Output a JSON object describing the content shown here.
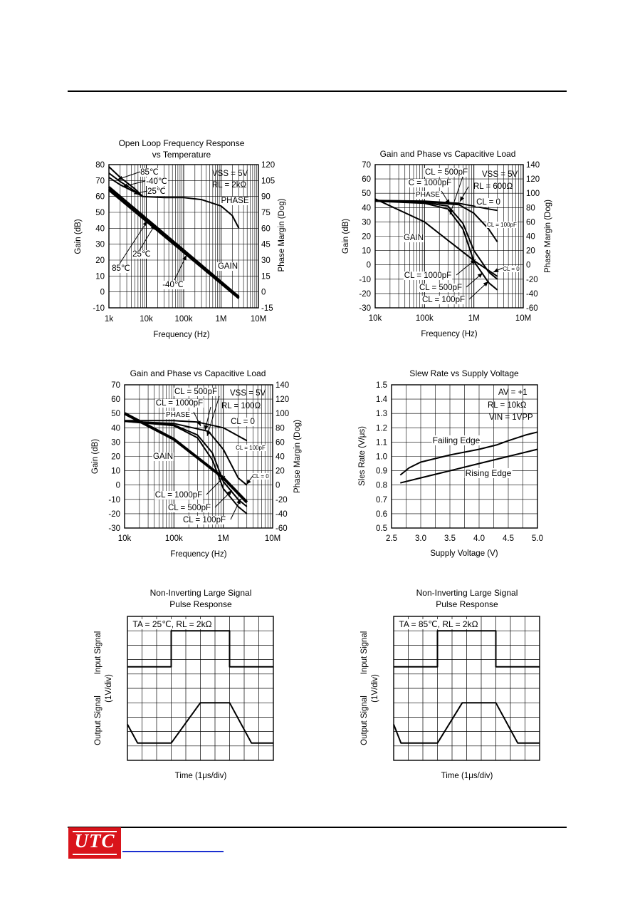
{
  "brand": {
    "logo_text": "UTC",
    "brand_color": "#d9141b",
    "link_color": "#1a2fd0"
  },
  "charts": [
    {
      "title": [
        "Open Loop Frequency Response",
        "vs Temperature"
      ],
      "type": "line",
      "xscale": "log",
      "xlabel": "Frequency (Hz)",
      "ylabel": "Gain (dB)",
      "y2label": "Phase Margin (Dog)",
      "xticks": [
        "1k",
        "10k",
        "100k",
        "1M",
        "10M"
      ],
      "yticks": [
        "80",
        "70",
        "60",
        "50",
        "40",
        "30",
        "20",
        "10",
        "0",
        "-10"
      ],
      "y2ticks": [
        "120",
        "105",
        "90",
        "75",
        "60",
        "45",
        "30",
        "15",
        "0",
        "-15"
      ],
      "conditions": [
        "VSS = 5V",
        "RL = 2kΩ"
      ],
      "annotations": [
        "85℃",
        "-40℃",
        "25℃",
        "PHASE",
        "25℃",
        "85℃",
        "-40℃",
        "GAIN"
      ]
    },
    {
      "title": [
        "Gain and Phase vs Capacitive Load"
      ],
      "type": "line",
      "xscale": "log",
      "xlabel": "Frequency (Hz)",
      "ylabel": "Gain (dB)",
      "y2label": "Phase Margin (Dog)",
      "xticks": [
        "10k",
        "100k",
        "1M",
        "10M"
      ],
      "yticks": [
        "70",
        "60",
        "50",
        "40",
        "30",
        "20",
        "10",
        "0",
        "-10",
        "-20",
        "-30"
      ],
      "y2ticks": [
        "140",
        "120",
        "100",
        "80",
        "60",
        "40",
        "20",
        "0",
        "-20",
        "-40",
        "-60"
      ],
      "conditions": [
        "VSS = 5V",
        "RL = 600Ω"
      ],
      "annotations": [
        "CL = 500pF",
        "C  = 1000pF",
        "PHASE",
        "CL = 0",
        "CL = 100pF",
        "GAIN",
        "CL = 1000pF",
        "CL = 500pF",
        "CL = 100pF",
        "CL = 0"
      ]
    },
    {
      "title": [
        "Gain and Phase vs Capacitive Load"
      ],
      "type": "line",
      "xscale": "log",
      "xlabel": "Frequency (Hz)",
      "ylabel": "Gain (dB)",
      "y2label": "Phase Margin (Dog)",
      "xticks": [
        "10k",
        "100k",
        "1M",
        "10M"
      ],
      "yticks": [
        "70",
        "60",
        "50",
        "40",
        "30",
        "20",
        "10",
        "0",
        "-10",
        "-20",
        "-30"
      ],
      "y2ticks": [
        "140",
        "120",
        "100",
        "80",
        "60",
        "40",
        "20",
        "0",
        "-20",
        "-40",
        "-60"
      ],
      "conditions": [
        "VSS = 5V",
        "RL = 100Ω"
      ],
      "annotations": [
        "CL = 500pF",
        "CL = 1000pF",
        "PHASE",
        "CL = 0",
        "CL = 100pF",
        "GAIN",
        "CL = 1000pF",
        "CL = 500pF",
        "CL = 100pF",
        "CL = 0"
      ]
    },
    {
      "title": [
        "Slew Rate vs Supply Voltage"
      ],
      "type": "line",
      "xlabel": "Supply Voltage (V)",
      "ylabel": "Sles Rate (V/μs)",
      "xticks": [
        "2.5",
        "3.0",
        "3.5",
        "4.0",
        "4.5",
        "5.0"
      ],
      "yticks": [
        "1.5",
        "1.4",
        "1.3",
        "1.2",
        "1.1",
        "1.0",
        "0.9",
        "0.8",
        "0.7",
        "0.6",
        "0.5"
      ],
      "conditions": [
        "AV = +1",
        "RL = 10kΩ",
        "VIN = 1VPP"
      ],
      "annotations": [
        "Failing Edge",
        "Rising Edge"
      ]
    },
    {
      "title": [
        "Non-Inverting Large Signal",
        "Pulse Response"
      ],
      "type": "line",
      "xlabel": "Time (1μs/div)",
      "ylabel_top": "Input Signal",
      "ylabel_mid": "(1V/div)",
      "ylabel_bottom": "Output Signal",
      "conditions": [
        "TA = 25℃, RL = 2kΩ"
      ]
    },
    {
      "title": [
        "Non-Inverting Large Signal",
        "Pulse Response"
      ],
      "type": "line",
      "xlabel": "Time (1μs/div)",
      "ylabel_top": "Input Signal",
      "ylabel_mid": "(1V/div)",
      "ylabel_bottom": "Output Signal",
      "conditions": [
        "TA = 85℃, RL = 2kΩ"
      ]
    }
  ],
  "chart_data": [
    {
      "type": "line",
      "title": "Open Loop Frequency Response vs Temperature",
      "xlabel": "Frequency (Hz)",
      "ylabel": "Gain (dB)",
      "y2label": "Phase Margin (Dog)",
      "xlim": [
        1000,
        10000000
      ],
      "ylim": [
        -10,
        80
      ],
      "y2lim": [
        -15,
        120
      ],
      "series": [
        {
          "name": "GAIN -40℃",
          "axis": "gain",
          "x": [
            1000,
            3000000
          ],
          "y": [
            66,
            -3
          ]
        },
        {
          "name": "GAIN 25℃",
          "axis": "gain",
          "x": [
            1000,
            3000000
          ],
          "y": [
            65,
            -3.5
          ]
        },
        {
          "name": "GAIN 85℃",
          "axis": "gain",
          "x": [
            1000,
            3000000
          ],
          "y": [
            64,
            -4
          ]
        },
        {
          "name": "PHASE 85℃",
          "axis": "phase",
          "x": [
            1000,
            2000,
            5000,
            8000
          ],
          "y": [
            118,
            108,
            97,
            90
          ]
        },
        {
          "name": "PHASE -40℃",
          "axis": "phase",
          "x": [
            1000,
            2000,
            5000,
            8000
          ],
          "y": [
            112,
            104,
            95,
            90
          ]
        },
        {
          "name": "PHASE 25℃",
          "axis": "phase",
          "x": [
            1000,
            2000,
            5000,
            8000
          ],
          "y": [
            108,
            101,
            94,
            90
          ]
        },
        {
          "name": "PHASE",
          "axis": "phase",
          "x": [
            8000,
            30000,
            100000,
            300000,
            1000000,
            2000000,
            3000000
          ],
          "y": [
            90,
            89,
            89,
            87,
            81,
            72,
            60
          ]
        }
      ]
    },
    {
      "type": "line",
      "title": "Gain and Phase vs Capacitive Load",
      "xlabel": "Frequency (Hz)",
      "ylabel": "Gain (dB)",
      "y2label": "Phase Margin (Dog)",
      "xlim": [
        10000,
        10000000
      ],
      "ylim": [
        -30,
        70
      ],
      "y2lim": [
        -60,
        140
      ],
      "series": [
        {
          "name": "GAIN",
          "axis": "gain",
          "x": [
            10000,
            100000,
            1000000,
            3000000
          ],
          "y": [
            46,
            30,
            3,
            -8
          ]
        },
        {
          "name": "PHASE CL = 0",
          "axis": "phase",
          "x": [
            10000,
            100000,
            500000,
            1000000,
            2000000,
            3000000
          ],
          "y": [
            90,
            89,
            86,
            82,
            78,
            76
          ]
        },
        {
          "name": "PHASE CL = 100pF",
          "axis": "phase",
          "x": [
            10000,
            100000,
            500000,
            1000000,
            2000000,
            3000000
          ],
          "y": [
            89,
            88,
            84,
            72,
            50,
            32
          ]
        },
        {
          "name": "PHASE CL = 500pF",
          "axis": "phase",
          "x": [
            10000,
            100000,
            300000,
            600000,
            1000000,
            2000000,
            3000000
          ],
          "y": [
            89,
            87,
            82,
            58,
            20,
            -10,
            -20
          ]
        },
        {
          "name": "PHASE CL = 1000pF",
          "axis": "phase",
          "x": [
            10000,
            100000,
            300000,
            600000,
            1000000,
            2000000,
            3000000
          ],
          "y": [
            89,
            86,
            78,
            50,
            5,
            -25,
            -35
          ]
        }
      ]
    },
    {
      "type": "line",
      "title": "Gain and Phase vs Capacitive Load",
      "xlabel": "Frequency (Hz)",
      "ylabel": "Gain (dB)",
      "y2label": "Phase Margin (Dog)",
      "xlim": [
        10000,
        10000000
      ],
      "ylim": [
        -30,
        70
      ],
      "y2lim": [
        -60,
        140
      ],
      "series": [
        {
          "name": "GAIN",
          "axis": "gain",
          "x": [
            10000,
            100000,
            1000000,
            3000000
          ],
          "y": [
            50,
            32,
            5,
            -12
          ]
        },
        {
          "name": "PHASE CL = 0",
          "axis": "phase",
          "x": [
            10000,
            100000,
            300000,
            1000000,
            3000000
          ],
          "y": [
            90,
            90,
            88,
            80,
            62
          ]
        },
        {
          "name": "PHASE CL = 100pF",
          "axis": "phase",
          "x": [
            10000,
            100000,
            500000,
            1000000,
            2000000,
            3000000
          ],
          "y": [
            89,
            86,
            75,
            50,
            10,
            0
          ]
        },
        {
          "name": "PHASE CL = 500pF",
          "axis": "phase",
          "x": [
            10000,
            100000,
            300000,
            600000,
            1000000,
            2000000,
            3000000
          ],
          "y": [
            89,
            84,
            70,
            45,
            5,
            -20,
            -30
          ]
        },
        {
          "name": "PHASE CL = 1000pF",
          "axis": "phase",
          "x": [
            10000,
            100000,
            300000,
            600000,
            1000000,
            2000000,
            3000000
          ],
          "y": [
            89,
            83,
            66,
            35,
            -5,
            -30,
            -40
          ]
        }
      ]
    },
    {
      "type": "line",
      "title": "Slew Rate vs Supply Voltage",
      "xlabel": "Supply Voltage (V)",
      "ylabel": "Sles Rate (V/μs)",
      "xlim": [
        2.5,
        5.0
      ],
      "ylim": [
        0.5,
        1.5
      ],
      "series": [
        {
          "name": "Failing Edge",
          "x": [
            2.65,
            2.8,
            3.0,
            3.5,
            4.0,
            4.3,
            4.5,
            4.8,
            5.0
          ],
          "y": [
            0.87,
            0.92,
            0.96,
            1.01,
            1.05,
            1.08,
            1.11,
            1.15,
            1.17
          ]
        },
        {
          "name": "Rising Edge",
          "x": [
            2.65,
            3.0,
            3.5,
            4.0,
            4.5,
            5.0
          ],
          "y": [
            0.815,
            0.85,
            0.9,
            0.95,
            1.0,
            1.05
          ]
        }
      ]
    },
    {
      "type": "line",
      "title": "Non-Inverting Large Signal Pulse Response",
      "xlabel": "Time (1μs/div)",
      "xlim": [
        0,
        10
      ],
      "ylim": [
        0,
        10
      ],
      "series": [
        {
          "name": "Input Signal",
          "x": [
            0,
            3,
            3,
            7,
            7,
            10
          ],
          "y": [
            6.5,
            6.5,
            9,
            9,
            6.5,
            6.5
          ]
        },
        {
          "name": "Output Signal",
          "x": [
            0,
            0.7,
            3,
            5,
            7,
            8.5,
            10
          ],
          "y": [
            2.5,
            1.2,
            1.2,
            4,
            4,
            1.2,
            1.2
          ]
        }
      ]
    },
    {
      "type": "line",
      "title": "Non-Inverting Large Signal Pulse Response",
      "xlabel": "Time (1μs/div)",
      "xlim": [
        0,
        10
      ],
      "ylim": [
        0,
        10
      ],
      "series": [
        {
          "name": "Input Signal",
          "x": [
            0,
            3,
            3,
            7,
            7,
            10
          ],
          "y": [
            6.5,
            6.5,
            9,
            9,
            6.5,
            6.5
          ]
        },
        {
          "name": "Output Signal",
          "x": [
            0,
            0.5,
            3,
            4.7,
            7,
            8.5,
            10
          ],
          "y": [
            2.5,
            1.2,
            1.2,
            4,
            4,
            1.2,
            1.2
          ]
        }
      ]
    }
  ]
}
